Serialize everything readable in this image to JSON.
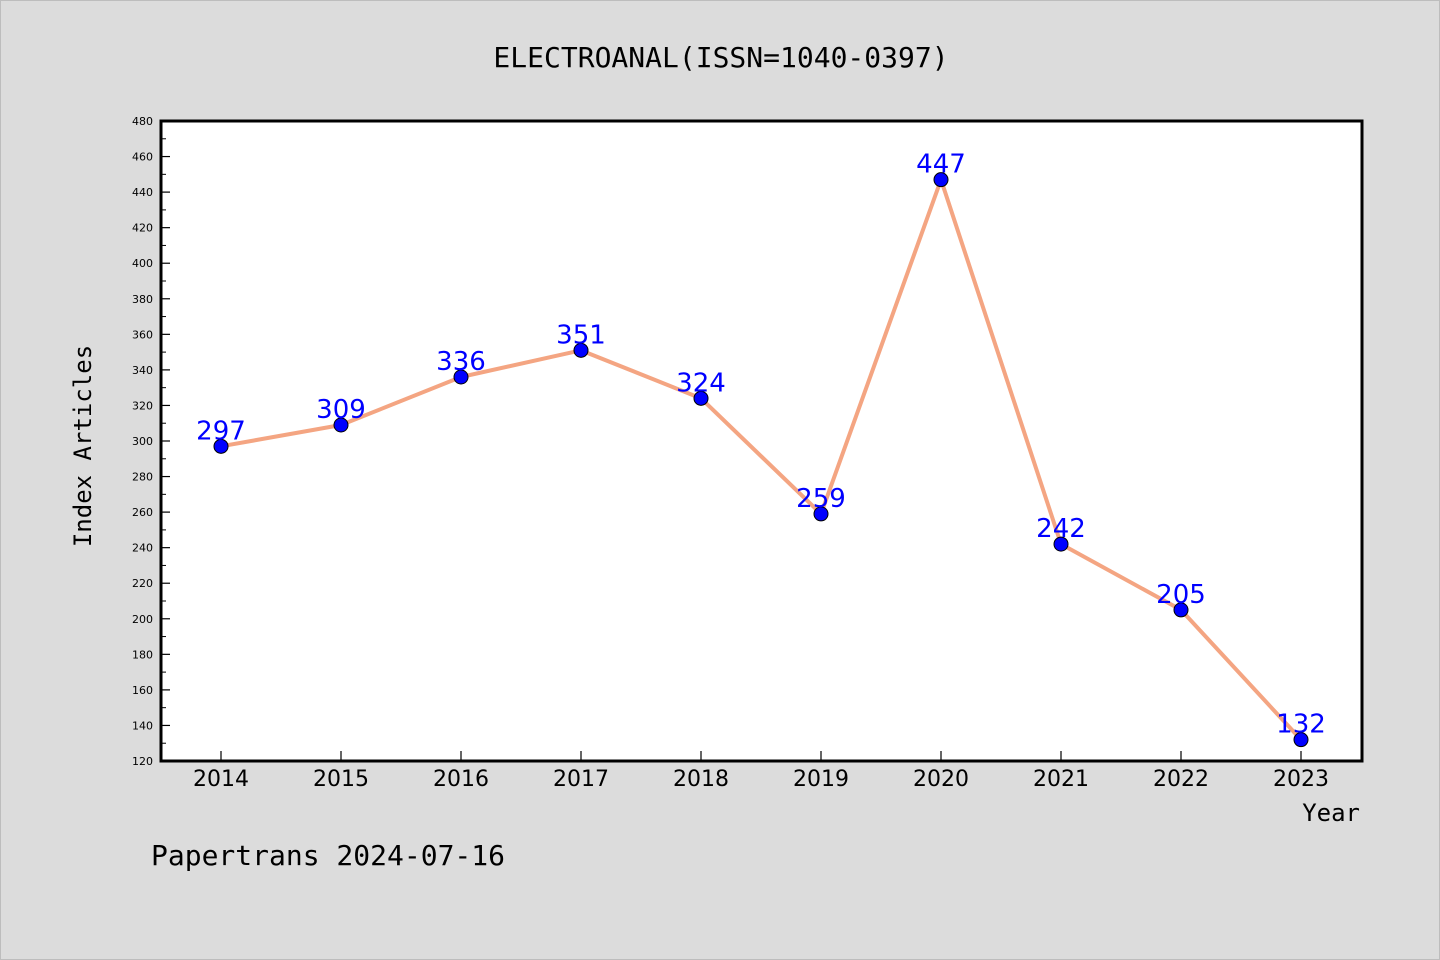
{
  "chart_data": {
    "type": "line",
    "title": "ELECTROANAL(ISSN=1040-0397)",
    "xlabel": "Year",
    "ylabel": "Index Articles",
    "categories": [
      "2014",
      "2015",
      "2016",
      "2017",
      "2018",
      "2019",
      "2020",
      "2021",
      "2022",
      "2023"
    ],
    "values": [
      297,
      309,
      336,
      351,
      324,
      259,
      447,
      242,
      205,
      132
    ],
    "ylim": [
      120,
      480
    ],
    "y_ticks": [
      "120",
      "140",
      "160",
      "180",
      "200",
      "220",
      "240",
      "260",
      "280",
      "300",
      "320",
      "340",
      "360",
      "380",
      "400",
      "420",
      "440",
      "460",
      "480"
    ],
    "grid": false,
    "legend": "none",
    "colors": {
      "line": "#f4a582",
      "marker": "#0000ff",
      "label": "#0000ff",
      "background": "#dcdcdc",
      "plot_area": "#ffffff"
    }
  },
  "footer": {
    "credit": "Papertrans 2024-07-16"
  }
}
